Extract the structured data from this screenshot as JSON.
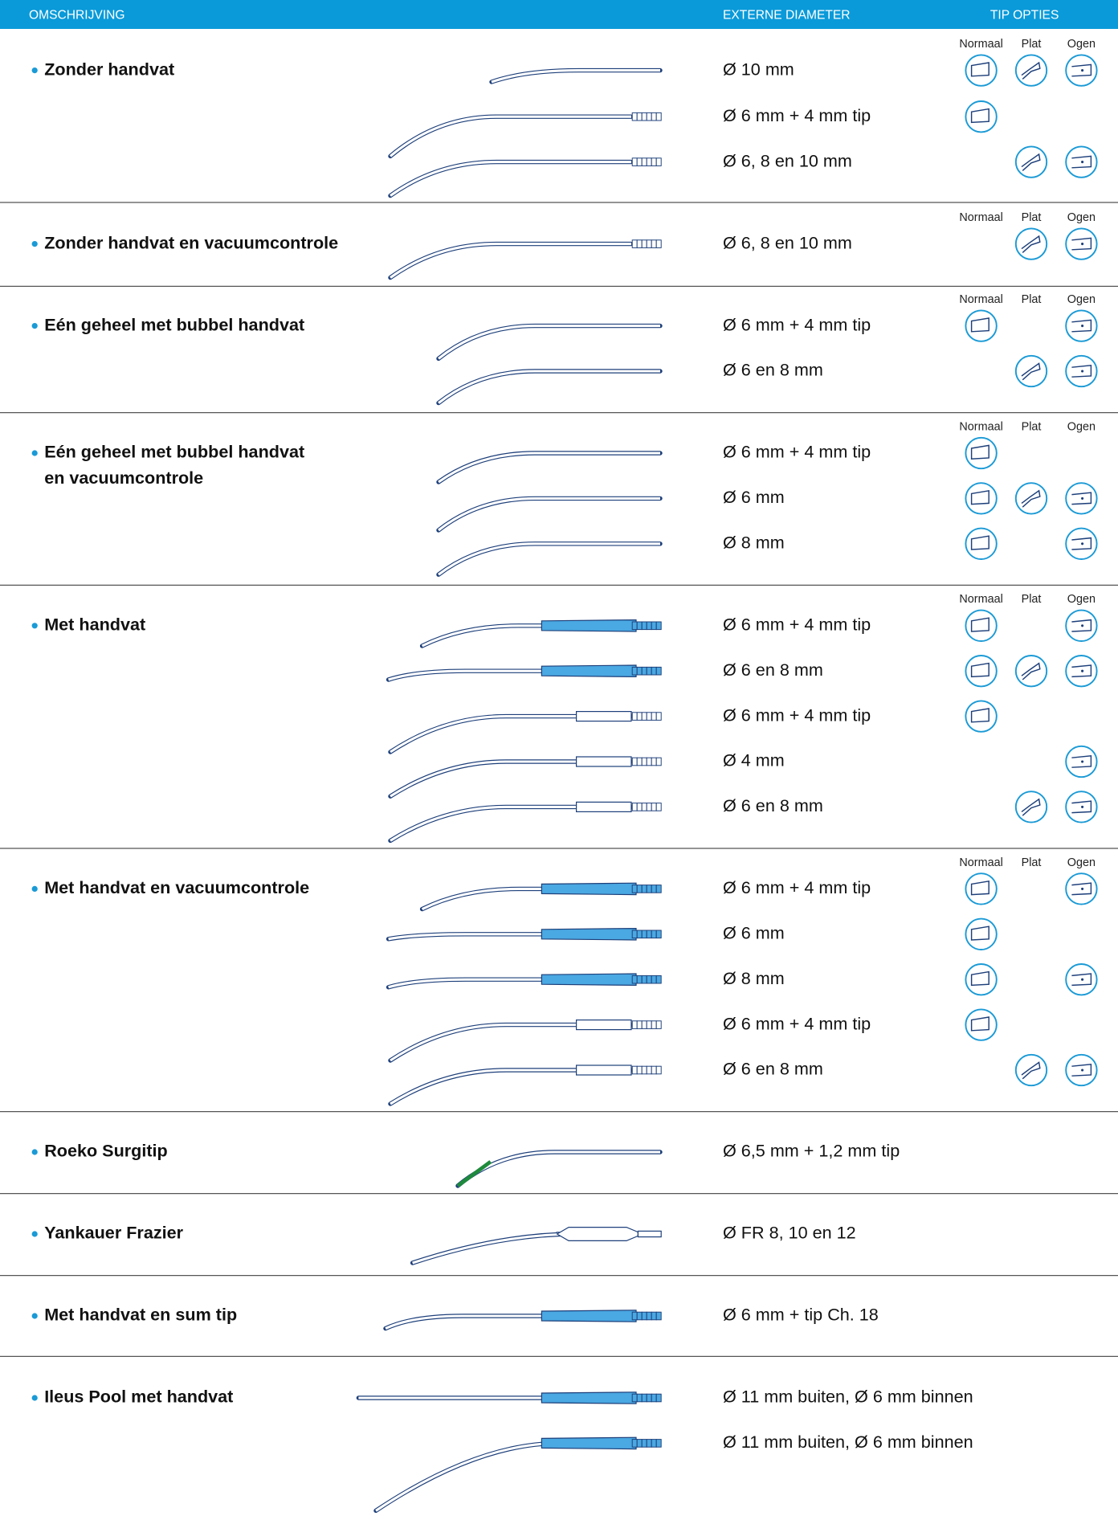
{
  "header": {
    "description": "OMSCHRIJVING",
    "diameter": "EXTERNE DIAMETER",
    "tip_options": "TIP OPTIES"
  },
  "tip_labels": [
    "Normaal",
    "Plat",
    "Ogen"
  ],
  "sections": [
    {
      "title": [
        "Zonder handvat"
      ],
      "diameters": [
        "Ø 10 mm",
        "Ø 6 mm + 4 mm tip",
        "Ø 6, 8 en 10 mm"
      ]
    },
    {
      "title": [
        "Zonder handvat en vacuumcontrole"
      ],
      "diameters": [
        "Ø 6, 8 en 10 mm"
      ]
    },
    {
      "title": [
        "Eén geheel met bubbel handvat"
      ],
      "diameters": [
        "Ø 6 mm + 4 mm tip",
        "Ø 6 en 8 mm"
      ]
    },
    {
      "title": [
        "Eén geheel met bubbel handvat",
        "en vacuumcontrole"
      ],
      "diameters": [
        "Ø 6 mm + 4 mm tip",
        "Ø 6 mm",
        "Ø 8 mm"
      ]
    },
    {
      "title": [
        "Met handvat"
      ],
      "diameters": [
        "Ø 6 mm + 4 mm tip",
        "Ø 6 en 8 mm",
        "Ø 6 mm + 4 mm tip",
        "Ø 4 mm",
        "Ø 6 en 8 mm"
      ]
    },
    {
      "title": [
        "Met handvat en vacuumcontrole"
      ],
      "diameters": [
        "Ø 6 mm + 4 mm tip",
        "Ø 6 mm",
        "Ø 8 mm",
        "Ø 6 mm + 4 mm tip",
        "Ø 6 en 8 mm"
      ]
    },
    {
      "title": [
        "Roeko Surgitip"
      ],
      "diameters": [
        "Ø 6,5 mm + 1,2 mm tip"
      ]
    },
    {
      "title": [
        "Yankauer Frazier"
      ],
      "diameters": [
        "Ø FR 8, 10 en 12"
      ]
    },
    {
      "title": [
        "Met handvat en sum tip"
      ],
      "diameters": [
        "Ø 6 mm + tip Ch. 18"
      ]
    },
    {
      "title": [
        "Ileus Pool met handvat"
      ],
      "diameters": [
        "Ø 11 mm buiten, Ø 6 mm binnen",
        "Ø 11 mm buiten, Ø 6 mm binnen"
      ]
    }
  ]
}
